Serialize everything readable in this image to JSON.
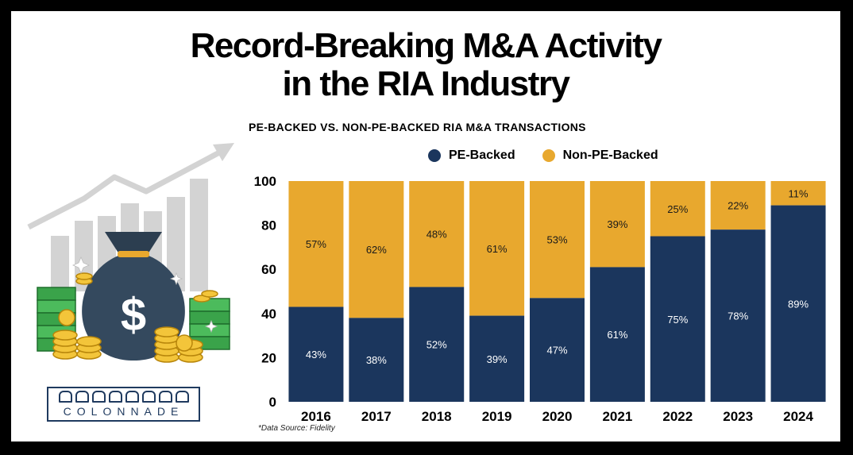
{
  "header": {
    "title_line1": "Record-Breaking M&A Activity",
    "title_line2": "in the RIA Industry"
  },
  "source_note": "*Data Source: Fidelity",
  "logo": {
    "text": "COLONNADE"
  },
  "colors": {
    "pe_backed": "#1b365d",
    "non_pe_backed": "#e8a82e",
    "background": "#ffffff",
    "frame": "#000000"
  },
  "chart_data": {
    "type": "bar",
    "stacked": true,
    "title": "PE-BACKED VS. NON-PE-BACKED RIA M&A TRANSACTIONS",
    "xlabel": "",
    "ylabel": "",
    "ylim": [
      0,
      100
    ],
    "yticks": [
      0,
      20,
      40,
      60,
      80,
      100
    ],
    "grid": false,
    "legend_position": "top",
    "categories": [
      "2016",
      "2017",
      "2018",
      "2019",
      "2020",
      "2021",
      "2022",
      "2023",
      "2024"
    ],
    "series": [
      {
        "name": "PE-Backed",
        "color": "#1b365d",
        "values": [
          43,
          38,
          52,
          39,
          47,
          61,
          75,
          78,
          89
        ],
        "labels": [
          "43%",
          "38%",
          "52%",
          "39%",
          "47%",
          "61%",
          "75%",
          "78%",
          "89%"
        ]
      },
      {
        "name": "Non-PE-Backed",
        "color": "#e8a82e",
        "values": [
          57,
          62,
          48,
          61,
          53,
          39,
          25,
          22,
          11
        ],
        "labels": [
          "57%",
          "62%",
          "48%",
          "61%",
          "53%",
          "39%",
          "25%",
          "22%",
          "11%"
        ]
      }
    ]
  }
}
